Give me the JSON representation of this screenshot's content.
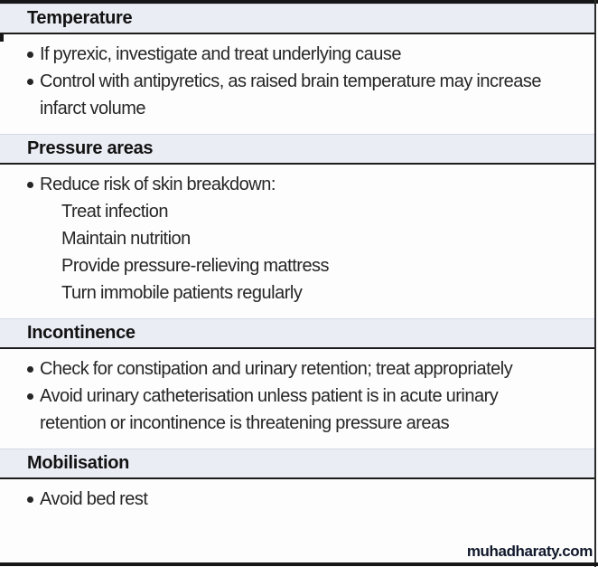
{
  "sections": [
    {
      "title": "Temperature",
      "items": [
        {
          "style": "bullet",
          "text": "If pyrexic, investigate and treat underlying cause"
        },
        {
          "style": "bullet",
          "text": "Control with antipyretics, as raised brain temperature may increase infarct volume"
        }
      ]
    },
    {
      "title": "Pressure areas",
      "items": [
        {
          "style": "bullet",
          "text": "Reduce risk of skin breakdown:"
        },
        {
          "style": "sub",
          "text": "Treat infection"
        },
        {
          "style": "sub",
          "text": "Maintain nutrition"
        },
        {
          "style": "sub",
          "text": "Provide pressure-relieving mattress"
        },
        {
          "style": "sub",
          "text": "Turn immobile patients regularly"
        }
      ]
    },
    {
      "title": "Incontinence",
      "items": [
        {
          "style": "bullet",
          "text": "Check for constipation and urinary retention; treat appropriately"
        },
        {
          "style": "bullet",
          "text": "Avoid urinary catheterisation unless patient is in acute urinary retention or incontinence is threatening pressure areas"
        }
      ]
    },
    {
      "title": "Mobilisation",
      "items": [
        {
          "style": "bullet",
          "text": "Avoid bed rest"
        }
      ]
    }
  ],
  "watermark": {
    "label": "muhadharaty.com"
  },
  "colors": {
    "band-bg": "#eaedf4",
    "rule": "#1c1c1c",
    "frame": "#161616",
    "text": "#262626",
    "watermark": "#10182b"
  }
}
